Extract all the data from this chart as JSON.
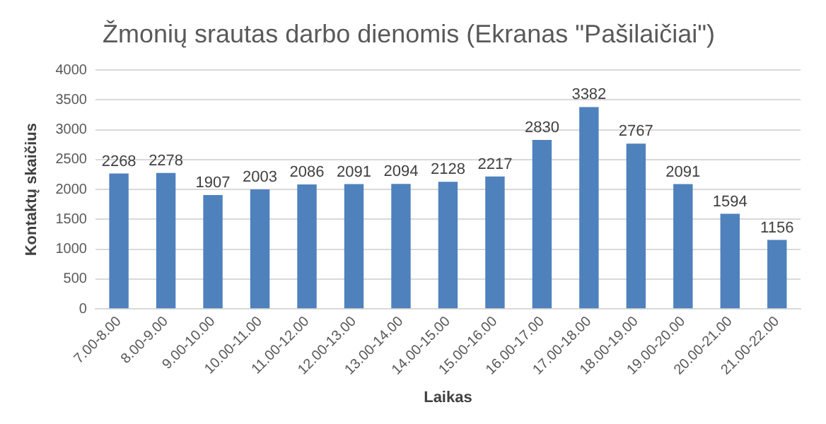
{
  "chart_data": {
    "type": "bar",
    "title": "Žmonių srautas darbo dienomis (Ekranas \"Pašilaičiai\")",
    "xlabel": "Laikas",
    "ylabel": "Kontaktų skaičius",
    "categories": [
      "7.00-8.00",
      "8.00-9.00",
      "9.00-10.00",
      "10.00-11.00",
      "11.00-12.00",
      "12.00-13.00",
      "13.00-14.00",
      "14.00-15.00",
      "15.00-16.00",
      "16.00-17.00",
      "17.00-18.00",
      "18.00-19.00",
      "19.00-20.00",
      "20.00-21.00",
      "21.00-22.00"
    ],
    "values": [
      2268,
      2278,
      1907,
      2003,
      2086,
      2091,
      2094,
      2128,
      2217,
      2830,
      3382,
      2767,
      2091,
      1594,
      1156
    ],
    "color": "#4f81bd",
    "ylim": [
      0,
      4000
    ],
    "yticks": [
      0,
      500,
      1000,
      1500,
      2000,
      2500,
      3000,
      3500,
      4000
    ],
    "grid": "y",
    "data_labels": true,
    "legend": false
  }
}
